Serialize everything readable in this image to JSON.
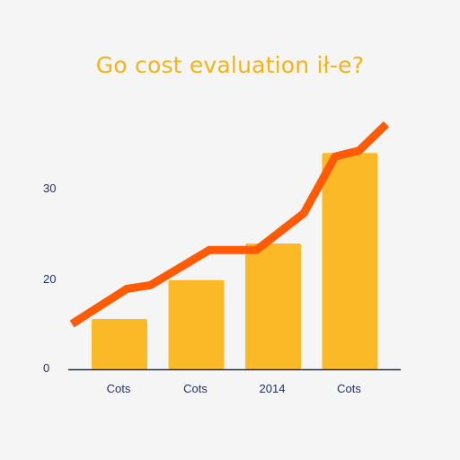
{
  "chart_data": {
    "type": "bar",
    "title": "Go cost evaluation ił-e?",
    "xlabel": "",
    "ylabel": "",
    "categories": [
      "Cots",
      "Cots",
      "2014",
      "Cots"
    ],
    "y_ticks": [
      "0",
      "20",
      "30"
    ],
    "ylim": [
      0,
      30
    ],
    "grid": false,
    "series": [
      {
        "type": "bar",
        "values": [
          7,
          12.4,
          17.5,
          30.1
        ]
      },
      {
        "type": "line",
        "x": [
          0,
          0.7,
          1.0,
          1.75,
          2.35,
          2.95,
          3.35,
          3.65,
          4.0
        ],
        "values": [
          6.3,
          11.2,
          11.7,
          16.6,
          16.6,
          21.7,
          29.6,
          30.4,
          34.1
        ]
      }
    ],
    "colors": {
      "bar": "#fbb928",
      "line": "#ff5a06",
      "axis": "#1f2f5c",
      "title": "#f2b417"
    }
  }
}
